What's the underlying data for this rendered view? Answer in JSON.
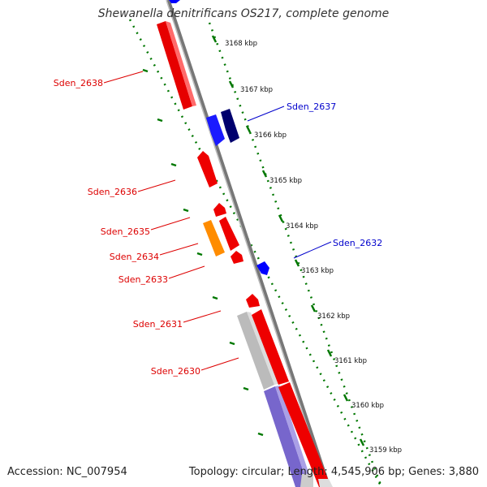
{
  "title": "Shewanella denitrificans OS217, complete genome",
  "footer": {
    "accession": "Accession: NC_007954",
    "summary": "Topology: circular; Length: 4,545,906 bp; Genes: 3,880"
  },
  "colors": {
    "forward_gene": "#ff0000",
    "reverse_gene": "#0000ff",
    "dark_reverse_gene": "#000080",
    "orange_gene": "#ff8c00",
    "gray_gene": "#bbbbbb",
    "purple_gene": "#7766cc",
    "scale_green": "#007700",
    "backbone": "#888888"
  },
  "scale": {
    "unit": "kbp",
    "ticks": [
      "3168 kbp",
      "3167 kbp",
      "3166 kbp",
      "3165 kbp",
      "3164 kbp",
      "3163 kbp",
      "3162 kbp",
      "3161 kbp",
      "3160 kbp",
      "3159 kbp"
    ]
  },
  "genes": [
    {
      "label": "Sden_2638",
      "strand": "forward",
      "color": "red"
    },
    {
      "label": "Sden_2637",
      "strand": "reverse",
      "color": "blue"
    },
    {
      "label": "Sden_2636",
      "strand": "forward",
      "color": "red"
    },
    {
      "label": "Sden_2635",
      "strand": "forward",
      "color": "red"
    },
    {
      "label": "Sden_2634",
      "strand": "forward",
      "color": "orange"
    },
    {
      "label": "Sden_2633",
      "strand": "forward",
      "color": "red"
    },
    {
      "label": "Sden_2632",
      "strand": "reverse",
      "color": "blue"
    },
    {
      "label": "Sden_2631",
      "strand": "forward",
      "color": "red"
    },
    {
      "label": "Sden_2630",
      "strand": "forward",
      "color": "gray"
    }
  ]
}
